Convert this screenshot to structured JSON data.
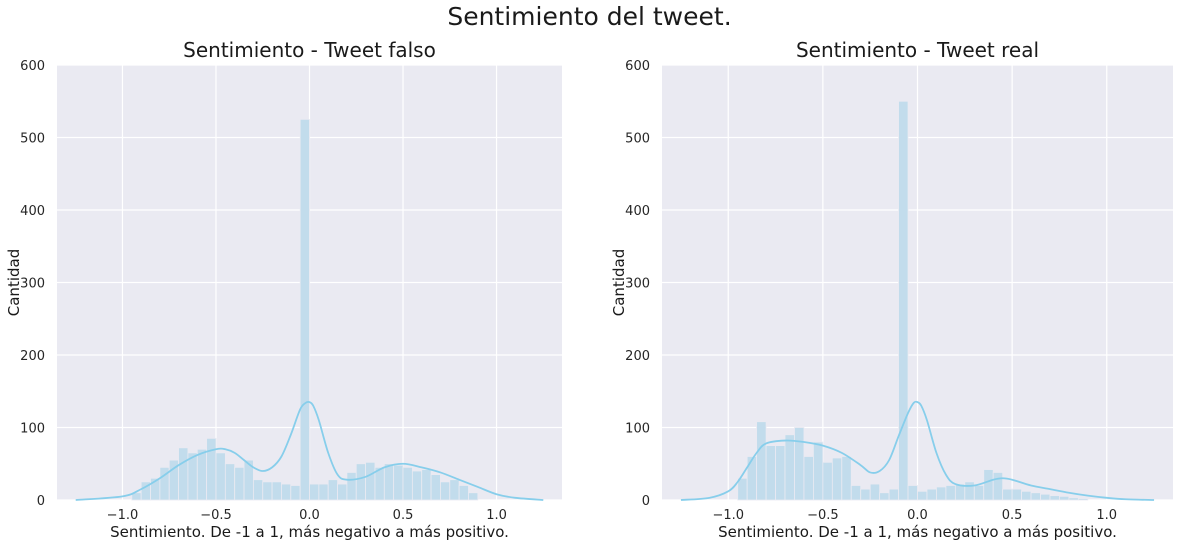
{
  "figure_title": "Sentimiento del tweet.",
  "chart_data": [
    {
      "type": "histogram",
      "title": "Sentimiento - Tweet falso",
      "xlabel": "Sentimiento. De -1 a 1, más negativo a más positivo.",
      "ylabel": "Cantidad",
      "xlim": [
        -1.35,
        1.35
      ],
      "ylim": [
        0,
        600
      ],
      "xticks": [
        -1.0,
        -0.5,
        0.0,
        0.5,
        1.0
      ],
      "xtick_labels": [
        "−1.0",
        "−0.5",
        "0.0",
        "0.5",
        "1.0"
      ],
      "yticks": [
        0,
        100,
        200,
        300,
        400,
        500,
        600
      ],
      "ytick_labels": [
        "0",
        "100",
        "200",
        "300",
        "400",
        "500",
        "600"
      ],
      "grid": true,
      "bar_color": "#c2dcec",
      "kde_color": "#87ceeb",
      "bin_start": -0.95,
      "bin_width": 0.05,
      "bar_values": [
        10,
        25,
        30,
        45,
        55,
        72,
        65,
        70,
        85,
        65,
        50,
        45,
        55,
        28,
        25,
        25,
        22,
        20,
        525,
        22,
        22,
        28,
        22,
        38,
        50,
        52,
        45,
        50,
        48,
        45,
        40,
        42,
        35,
        25,
        28,
        20,
        10
      ],
      "kde_x": [
        -1.25,
        -1.0,
        -0.9,
        -0.8,
        -0.7,
        -0.6,
        -0.5,
        -0.45,
        -0.4,
        -0.35,
        -0.3,
        -0.25,
        -0.2,
        -0.15,
        -0.1,
        -0.05,
        -0.02,
        0.0,
        0.02,
        0.05,
        0.1,
        0.15,
        0.2,
        0.3,
        0.4,
        0.5,
        0.6,
        0.7,
        0.8,
        0.9,
        1.0,
        1.1,
        1.25
      ],
      "kde_y": [
        0,
        5,
        15,
        30,
        48,
        62,
        70,
        70,
        65,
        55,
        45,
        40,
        45,
        60,
        90,
        125,
        134,
        135,
        130,
        110,
        65,
        35,
        28,
        32,
        45,
        50,
        45,
        38,
        28,
        18,
        8,
        3,
        0
      ]
    },
    {
      "type": "histogram",
      "title": "Sentimiento - Tweet real",
      "xlabel": "Sentimiento. De -1 a 1, más negativo a más positivo.",
      "ylabel": "Cantidad",
      "xlim": [
        -1.35,
        1.35
      ],
      "ylim": [
        0,
        600
      ],
      "xticks": [
        -1.0,
        -0.5,
        0.0,
        0.5,
        1.0
      ],
      "xtick_labels": [
        "−1.0",
        "−0.5",
        "0.0",
        "0.5",
        "1.0"
      ],
      "yticks": [
        0,
        100,
        200,
        300,
        400,
        500,
        600
      ],
      "ytick_labels": [
        "0",
        "100",
        "200",
        "300",
        "400",
        "500",
        "600"
      ],
      "grid": true,
      "bar_color": "#c2dcec",
      "kde_color": "#87ceeb",
      "bin_start": -0.95,
      "bin_width": 0.05,
      "bar_values": [
        30,
        60,
        108,
        75,
        75,
        90,
        100,
        60,
        80,
        52,
        58,
        60,
        20,
        15,
        22,
        10,
        15,
        550,
        20,
        12,
        15,
        18,
        20,
        22,
        25,
        20,
        42,
        38,
        15,
        15,
        12,
        10,
        8,
        6,
        5,
        3,
        2
      ],
      "kde_x": [
        -1.25,
        -1.1,
        -1.0,
        -0.95,
        -0.9,
        -0.85,
        -0.8,
        -0.7,
        -0.6,
        -0.5,
        -0.4,
        -0.3,
        -0.25,
        -0.2,
        -0.15,
        -0.1,
        -0.05,
        -0.02,
        0.0,
        0.02,
        0.05,
        0.1,
        0.15,
        0.2,
        0.3,
        0.4,
        0.45,
        0.5,
        0.6,
        0.7,
        0.8,
        0.9,
        1.0,
        1.1,
        1.25
      ],
      "kde_y": [
        0,
        3,
        12,
        25,
        45,
        65,
        78,
        82,
        80,
        75,
        65,
        48,
        38,
        40,
        55,
        88,
        120,
        134,
        135,
        130,
        110,
        65,
        35,
        22,
        20,
        28,
        30,
        28,
        20,
        15,
        10,
        6,
        3,
        1,
        0
      ]
    }
  ]
}
